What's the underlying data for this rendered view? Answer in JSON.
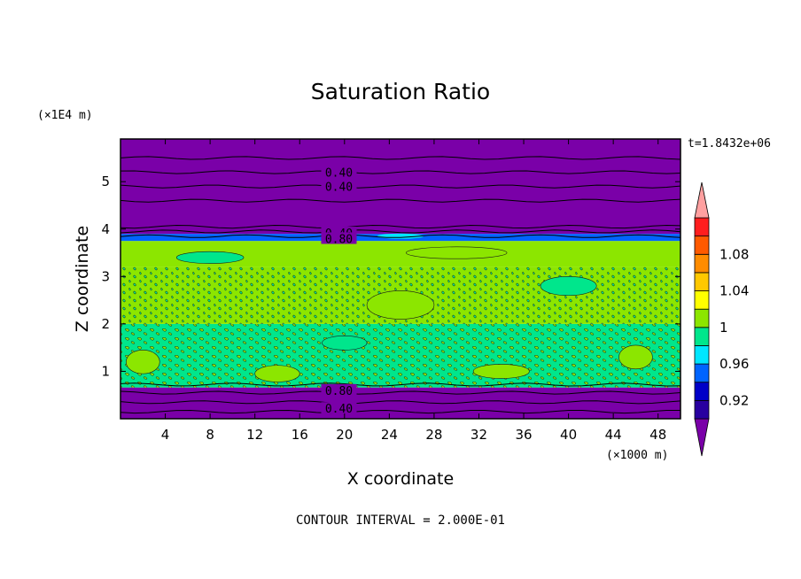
{
  "chart_data": {
    "type": "heatmap",
    "title": "Saturation Ratio",
    "xlabel": "X coordinate",
    "ylabel": "Z coordinate",
    "x_scale_label": "(×1000 m)",
    "y_scale_label": "(×1E4 m)",
    "xlim": [
      0,
      50
    ],
    "ylim": [
      0,
      5.9
    ],
    "x_ticks": [
      "4",
      "8",
      "12",
      "16",
      "20",
      "24",
      "28",
      "32",
      "36",
      "40",
      "44",
      "48"
    ],
    "y_ticks": [
      "1",
      "2",
      "3",
      "4",
      "5"
    ],
    "time_label": "t=1.8432e+06",
    "footer": "CONTOUR INTERVAL = 2.000E-01",
    "colorbar": {
      "labels": [
        "0.92",
        "0.96",
        "1",
        "1.04",
        "1.08"
      ],
      "colors": [
        "#7a00a8",
        "#2800a0",
        "#0000c8",
        "#0064ff",
        "#00e6ff",
        "#00e68c",
        "#8ce600",
        "#ffff00",
        "#ffc800",
        "#ff8c00",
        "#ff5a00",
        "#ff1e1e",
        "#ffa0a0"
      ]
    },
    "bands": [
      {
        "z_from": 0.0,
        "z_to": 0.66,
        "level": "<0.92",
        "color": "#7a00a8"
      },
      {
        "z_from": 0.66,
        "z_to": 2.0,
        "level": "0.98-1.0",
        "color": "#00e68c"
      },
      {
        "z_from": 2.0,
        "z_to": 3.2,
        "level": "mixed 0.98-1.02",
        "color": "#8ce600"
      },
      {
        "z_from": 3.2,
        "z_to": 3.75,
        "level": "1.0-1.02",
        "color": "#8ce600"
      },
      {
        "z_from": 3.75,
        "z_to": 3.9,
        "level": "0.92-0.98",
        "color": "#0064ff"
      },
      {
        "z_from": 3.9,
        "z_to": 5.9,
        "level": "<0.92",
        "color": "#7a00a8"
      }
    ],
    "contour_labels": [
      {
        "x": 19.5,
        "z": 5.2,
        "text": "0.40"
      },
      {
        "x": 19.5,
        "z": 4.9,
        "text": "0.40"
      },
      {
        "x": 19.5,
        "z": 3.92,
        "text": "0.40"
      },
      {
        "x": 19.5,
        "z": 3.8,
        "text": "0.80"
      },
      {
        "x": 19.5,
        "z": 0.6,
        "text": "0.80"
      },
      {
        "x": 19.5,
        "z": 0.22,
        "text": "0.40"
      }
    ]
  }
}
